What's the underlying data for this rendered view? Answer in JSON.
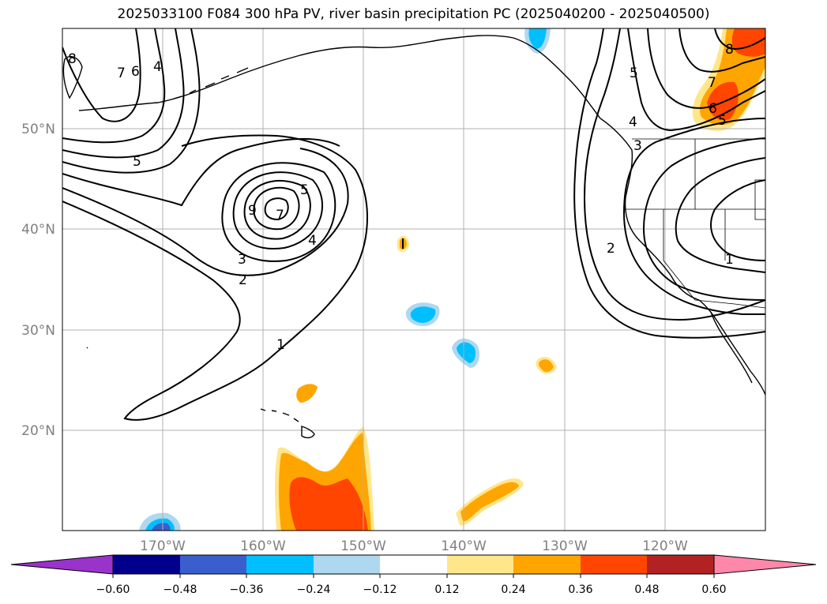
{
  "title": "2025033100 F084 300 hPa PV, river basin precipitation PC (2025040200 - 2025040500)",
  "map": {
    "projection": "PlateCarree",
    "lon_range": [
      -182,
      -112
    ],
    "lat_range": [
      10,
      60
    ],
    "grid": true,
    "lat_ticks": [
      {
        "value": 50,
        "label": "50°N"
      },
      {
        "value": 40,
        "label": "40°N"
      },
      {
        "value": 30,
        "label": "30°N"
      },
      {
        "value": 20,
        "label": "20°N"
      }
    ],
    "lon_ticks": [
      {
        "value": -170,
        "label": "170°W"
      },
      {
        "value": -160,
        "label": "160°W"
      },
      {
        "value": -150,
        "label": "150°W"
      },
      {
        "value": -140,
        "label": "140°W"
      },
      {
        "value": -130,
        "label": "130°W"
      },
      {
        "value": -120,
        "label": "120°W"
      }
    ],
    "pv_contour_labels": [
      "8",
      "7",
      "6",
      "4",
      "5",
      "9",
      "7",
      "5",
      "4",
      "3",
      "2",
      "1",
      "1",
      "5",
      "4",
      "3",
      "2",
      "7",
      "6",
      "5",
      "8"
    ]
  },
  "colorbar": {
    "ticks": [
      "−0.60",
      "−0.48",
      "−0.36",
      "−0.24",
      "−0.12",
      "0.12",
      "0.24",
      "0.36",
      "0.48",
      "0.60"
    ],
    "colors": [
      "#9933cc",
      "#00008b",
      "#3a5fcd",
      "#00bfff",
      "#add8f0",
      "#ffffff",
      "#ffe68a",
      "#ffa500",
      "#ff4500",
      "#b22222",
      "#ff88aa"
    ]
  }
}
